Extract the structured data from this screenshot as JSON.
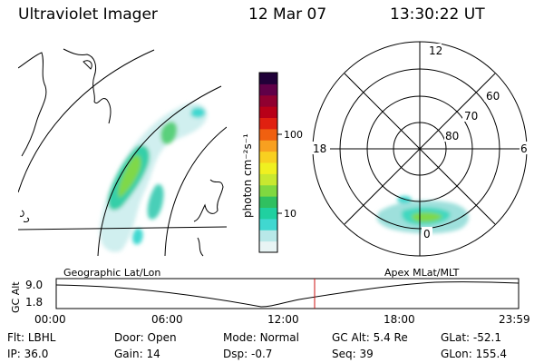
{
  "header": {
    "title": "Ultraviolet Imager",
    "date": "12 Mar 07",
    "time": "13:30:22 UT"
  },
  "colorbar": {
    "unit_label": "photon cm⁻²s⁻¹",
    "ticks": [
      "100",
      "10"
    ],
    "scale": "log",
    "colors": [
      "#e8f4f4",
      "#b8e8e8",
      "#40d8d0",
      "#20d0a0",
      "#30c060",
      "#80d840",
      "#c8e830",
      "#f0f020",
      "#f8d020",
      "#f8a020",
      "#f06010",
      "#e02010",
      "#b80018",
      "#900030",
      "#600048",
      "#200038"
    ]
  },
  "polar_plot": {
    "mlt_labels": [
      "12",
      "18",
      "6",
      "0"
    ],
    "lat_labels": [
      "60",
      "70",
      "80"
    ]
  },
  "timeline": {
    "left_label": "Geographic Lat/Lon",
    "right_label": "Apex MLat/MLT",
    "y_axis_label": "GC Alt",
    "y_ticks": [
      "9.0",
      "1.8"
    ],
    "x_ticks": [
      "00:00",
      "06:00",
      "12:00",
      "18:00",
      "23:59"
    ],
    "marker_time": "13:30"
  },
  "status": {
    "row1": [
      {
        "label": "Flt:",
        "value": "LBHL"
      },
      {
        "label": "Door:",
        "value": "Open"
      },
      {
        "label": "Mode:",
        "value": "Normal"
      },
      {
        "label": "GC Alt:",
        "value": "5.4 Re"
      },
      {
        "label": "GLat:",
        "value": "-52.1"
      }
    ],
    "row2": [
      {
        "label": "IP:",
        "value": "36.0"
      },
      {
        "label": "Gain:",
        "value": "14"
      },
      {
        "label": "Dsp:",
        "value": "-0.7"
      },
      {
        "label": "Seq:",
        "value": "39"
      },
      {
        "label": "GLon:",
        "value": "155.4"
      }
    ]
  }
}
